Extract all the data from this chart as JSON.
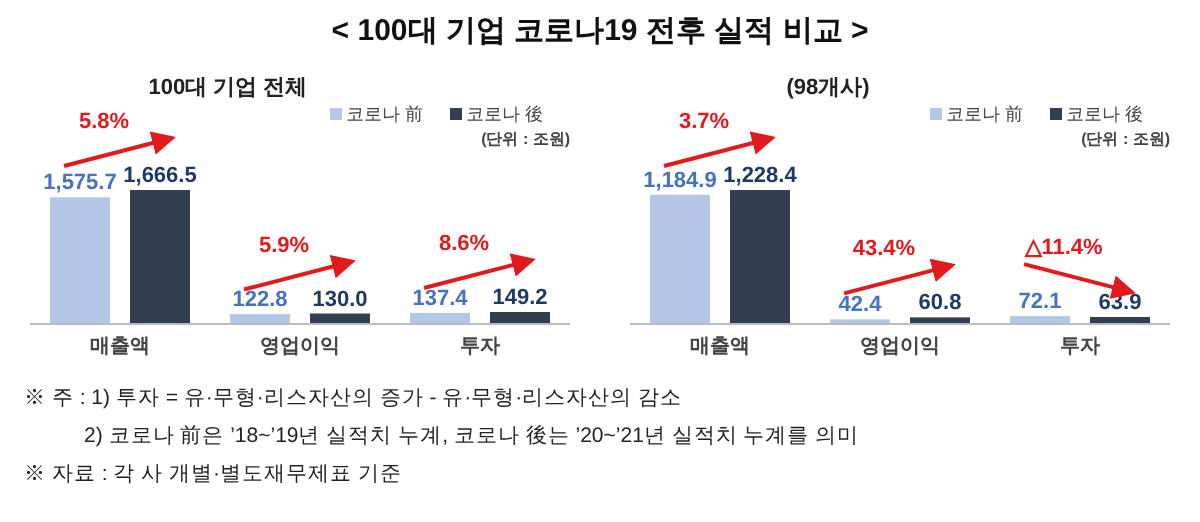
{
  "chart_data": [
    {
      "type": "bar",
      "title": "< 100대 기업 코로나19 전후 실적 비교 >",
      "subtitle": "100대 기업 전체",
      "categories": [
        "매출액",
        "영업이익",
        "투자"
      ],
      "series": [
        {
          "name": "코로나 前",
          "color": "#b4c7e7",
          "values": [
            1575.7,
            122.8,
            137.4
          ],
          "value_labels": [
            "1,575.7",
            "122.8",
            "137.4"
          ]
        },
        {
          "name": "코로나 後",
          "color": "#333f50",
          "values": [
            1666.5,
            130.0,
            149.2
          ],
          "value_labels": [
            "1,666.5",
            "130.0",
            "149.2"
          ]
        }
      ],
      "legend": "top right",
      "legend_title": "(단위 : 조원)",
      "annotations": [
        "5.8%",
        "5.9%",
        "8.6%",
        "※ 주 : 1) 투자 = 유·무형·리스자산의 증가 - 유·무형·리스자산의 감소",
        "2) 코로나 前은 ’18~’19년 실적치 누계, 코로나 後는 ’20~’21년 실적치 누계를 의미",
        "※ 자료 : 각 사 개별·별도재무제표 기준"
      ]
    },
    {
      "type": "bar",
      "subtitle": "(98개사)",
      "categories": [
        "매출액",
        "영업이익",
        "투자"
      ],
      "series": [
        {
          "name": "코로나 前",
          "color": "#b4c7e7",
          "values": [
            1184.9,
            42.4,
            72.1
          ],
          "value_labels": [
            "1,184.9",
            "42.4",
            "72.1"
          ]
        },
        {
          "name": "코로나 後",
          "color": "#333f50",
          "values": [
            1228.4,
            60.8,
            63.9
          ],
          "value_labels": [
            "1,228.4",
            "60.8",
            "63.9"
          ]
        }
      ],
      "legend": "top right",
      "legend_title": "(단위 : 조원)",
      "annotations": [
        "3.7%",
        "43.4%",
        "△11.4%"
      ]
    }
  ]
}
